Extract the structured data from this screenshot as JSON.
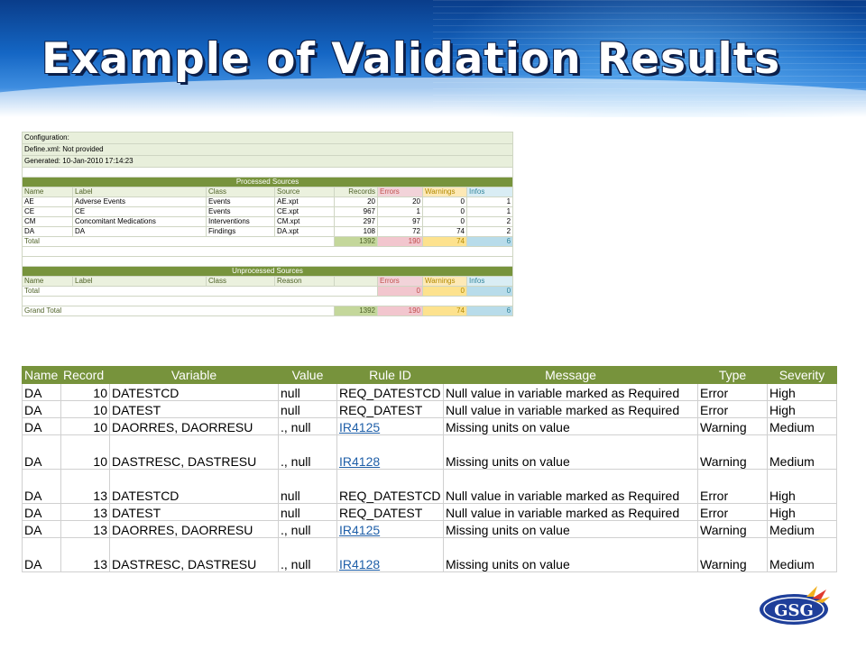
{
  "title": "Example of Validation Results",
  "logo": {
    "text": "GSG"
  },
  "summary_sheet": {
    "config_lines": [
      "Configuration:",
      "Define.xml: Not provided",
      "Generated: 10-Jan-2010 17:14:23"
    ],
    "processed": {
      "section_title": "Processed Sources",
      "headers": [
        "Name",
        "Label",
        "Class",
        "Source",
        "Records",
        "Errors",
        "Warnings",
        "Infos"
      ],
      "rows": [
        [
          "AE",
          "Adverse Events",
          "Events",
          "AE.xpt",
          "20",
          "20",
          "0",
          "1"
        ],
        [
          "CE",
          "CE",
          "Events",
          "CE.xpt",
          "967",
          "1",
          "0",
          "1"
        ],
        [
          "CM",
          "Concomitant Medications",
          "Interventions",
          "CM.xpt",
          "297",
          "97",
          "0",
          "2"
        ],
        [
          "DA",
          "DA",
          "Findings",
          "DA.xpt",
          "108",
          "72",
          "74",
          "2"
        ]
      ],
      "total": {
        "label": "Total",
        "records": "1392",
        "errors": "190",
        "warnings": "74",
        "infos": "6"
      }
    },
    "unprocessed": {
      "section_title": "Unprocessed Sources",
      "headers": [
        "Name",
        "Label",
        "Class",
        "Reason",
        "",
        "Errors",
        "Warnings",
        "Infos"
      ],
      "total": {
        "label": "Total",
        "errors": "0",
        "warnings": "0",
        "infos": "0"
      }
    },
    "grand_total": {
      "label": "Grand Total",
      "records": "1392",
      "errors": "190",
      "warnings": "74",
      "infos": "6"
    }
  },
  "detail_sheet": {
    "headers": [
      "Name",
      "Record",
      "Variable",
      "Value",
      "Rule ID",
      "Message",
      "Type",
      "Severity"
    ],
    "rows": [
      {
        "name": "DA",
        "record": "10",
        "variable": "DATESTCD",
        "value": "null",
        "rule": "REQ_DATESTCD",
        "link": false,
        "message": "Null value in variable marked as Required",
        "type": "Error",
        "severity": "High",
        "tall": false
      },
      {
        "name": "DA",
        "record": "10",
        "variable": "DATEST",
        "value": "null",
        "rule": "REQ_DATEST",
        "link": false,
        "message": "Null value in variable marked as Required",
        "type": "Error",
        "severity": "High",
        "tall": false
      },
      {
        "name": "DA",
        "record": "10",
        "variable": "DAORRES, DAORRESU",
        "value": "., null",
        "rule": "IR4125",
        "link": true,
        "message": "Missing units on value",
        "type": "Warning",
        "severity": "Medium",
        "tall": false
      },
      {
        "name": "DA",
        "record": "10",
        "variable": "DASTRESC, DASTRESU",
        "value": "., null",
        "rule": "IR4128",
        "link": true,
        "message": "Missing units on value",
        "type": "Warning",
        "severity": "Medium",
        "tall": true
      },
      {
        "name": "DA",
        "record": "13",
        "variable": "DATESTCD",
        "value": "null",
        "rule": "REQ_DATESTCD",
        "link": false,
        "message": "Null value in variable marked as Required",
        "type": "Error",
        "severity": "High",
        "tall": true
      },
      {
        "name": "DA",
        "record": "13",
        "variable": "DATEST",
        "value": "null",
        "rule": "REQ_DATEST",
        "link": false,
        "message": "Null value in variable marked as Required",
        "type": "Error",
        "severity": "High",
        "tall": false
      },
      {
        "name": "DA",
        "record": "13",
        "variable": "DAORRES, DAORRESU",
        "value": "., null",
        "rule": "IR4125",
        "link": true,
        "message": "Missing units on value",
        "type": "Warning",
        "severity": "Medium",
        "tall": false
      },
      {
        "name": "DA",
        "record": "13",
        "variable": "DASTRESC, DASTRESU",
        "value": "., null",
        "rule": "IR4128",
        "link": true,
        "message": "Missing units on value",
        "type": "Warning",
        "severity": "Medium",
        "tall": true
      }
    ]
  }
}
